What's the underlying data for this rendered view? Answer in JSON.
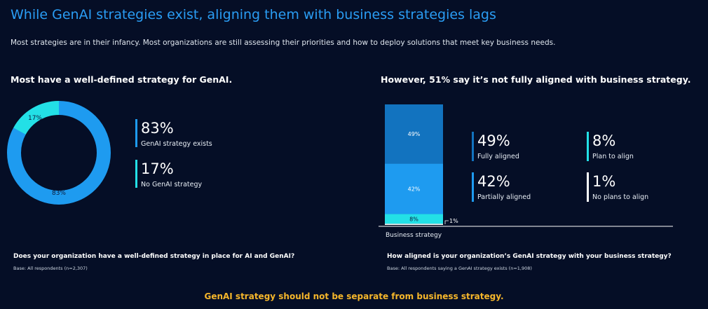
{
  "header": {
    "title": "While GenAI strategies exist, aligning them with business strategies lags",
    "subtitle": "Most strategies are in their infancy. Most organizations are still assessing their priorities and how to deploy solutions that meet key business needs."
  },
  "left_panel": {
    "heading": "Most have a well-defined strategy for GenAI.",
    "question": "Does your organization have a well-defined strategy in place for AI and GenAI?",
    "base": "Base: All respondents (n=2,307)",
    "stats": [
      {
        "value": "83%",
        "label": "GenAI strategy exists",
        "color": "#1e9bf0"
      },
      {
        "value": "17%",
        "label": "No GenAI strategy",
        "color": "#23e0e6"
      }
    ]
  },
  "right_panel": {
    "heading": "However, 51% say it’s not fully aligned with business strategy.",
    "question": "How aligned is your organization’s GenAI strategy with your business strategy?",
    "base": "Base: All respondents saying a GenAI strategy exists (n=1,908)",
    "stats": [
      {
        "value": "49%",
        "label": "Fully aligned",
        "color": "#1273bf"
      },
      {
        "value": "8%",
        "label": "Plan to align",
        "color": "#23e0e6"
      },
      {
        "value": "42%",
        "label": "Partially aligned",
        "color": "#1e9bf0"
      },
      {
        "value": "1%",
        "label": "No plans to align",
        "color": "#ffffff"
      }
    ]
  },
  "footer": "GenAI strategy should not be separate from business strategy.",
  "chart_data": [
    {
      "type": "pie",
      "donut": true,
      "slices": [
        {
          "label": "GenAI strategy exists",
          "value": 83,
          "data_label": "83%",
          "color": "#1e9bf0"
        },
        {
          "label": "No GenAI strategy",
          "value": 17,
          "data_label": "17%",
          "color": "#23e0e6"
        }
      ]
    },
    {
      "type": "bar",
      "stacked": true,
      "categories": [
        "Business strategy"
      ],
      "series": [
        {
          "name": "No plans to align",
          "values": [
            1
          ],
          "data_label": "1%",
          "color": "#ffffff"
        },
        {
          "name": "Plan to align",
          "values": [
            8
          ],
          "data_label": "8%",
          "color": "#23e0e6"
        },
        {
          "name": "Partially aligned",
          "values": [
            42
          ],
          "data_label": "42%",
          "color": "#1e9bf0"
        },
        {
          "name": "Fully aligned",
          "values": [
            49
          ],
          "data_label": "49%",
          "color": "#1273bf"
        }
      ],
      "ylim": [
        0,
        100
      ]
    }
  ]
}
